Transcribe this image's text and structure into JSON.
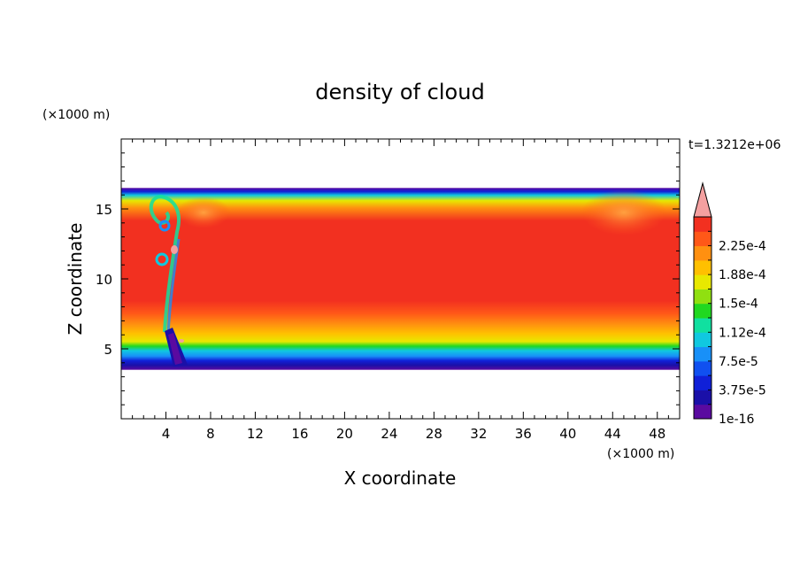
{
  "chart_data": {
    "type": "heatmap",
    "title": "density of cloud",
    "xlabel": "X coordinate",
    "ylabel": "Z coordinate",
    "x_unit": "(×1000 m)",
    "y_unit": "(×1000 m)",
    "time_label": "t=1.3212e+06",
    "xlim": [
      0,
      50
    ],
    "ylim": [
      0,
      20
    ],
    "x_ticks": [
      4,
      8,
      12,
      16,
      20,
      24,
      28,
      32,
      36,
      40,
      44,
      48
    ],
    "y_ticks": [
      5,
      10,
      15
    ],
    "grid": false,
    "cloud_layer": {
      "base_z": 3.5,
      "top_z": 16.5,
      "core_z": [
        8.5,
        13.5
      ]
    },
    "colorbar": {
      "levels": [
        1e-16,
        1.88e-05,
        3.75e-05,
        5.62e-05,
        7.5e-05,
        9.38e-05,
        0.000112,
        0.000131,
        0.00015,
        0.000169,
        0.000188,
        0.000206,
        0.000225,
        0.000244
      ],
      "tick_labels": [
        "1e-16",
        "3.75e-5",
        "7.5e-5",
        "1.12e-4",
        "1.5e-4",
        "1.88e-4",
        "2.25e-4"
      ],
      "colors": [
        "#5a0aa0",
        "#1a10a8",
        "#1020d8",
        "#1050f0",
        "#1890f8",
        "#10c8e0",
        "#10e0a0",
        "#20d820",
        "#90e010",
        "#e8e800",
        "#ffc000",
        "#ff9010",
        "#ff5818",
        "#f23020"
      ],
      "overflow_color": "#f4a0a0",
      "placement": "right"
    }
  }
}
